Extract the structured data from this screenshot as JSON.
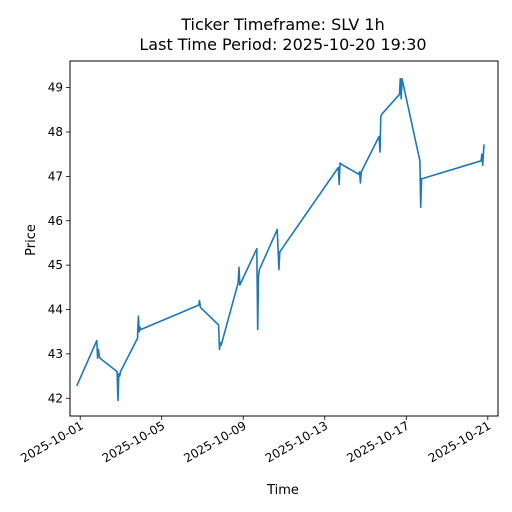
{
  "chart_data": {
    "type": "line",
    "title": "Ticker Timeframe: SLV 1h",
    "subtitle": "Last Time Period: 2025-10-20 19:30",
    "xlabel": "Time",
    "ylabel": "Price",
    "x_axis": "date",
    "xlim": [
      "2025-09-30 12:00",
      "2025-10-21 12:00"
    ],
    "ylim": [
      41.6,
      49.6
    ],
    "x_ticks": [
      "2025-10-01",
      "2025-10-05",
      "2025-10-09",
      "2025-10-13",
      "2025-10-17",
      "2025-10-21"
    ],
    "y_ticks": [
      42,
      43,
      44,
      45,
      46,
      47,
      48,
      49
    ],
    "grid": false,
    "line_color": "#1f77b4",
    "series": [
      {
        "x": [
          "2025-09-30 20:00",
          "2025-10-01 19:30",
          "2025-10-01 20:30",
          "2025-10-01 21:30",
          "2025-10-01 22:30",
          "2025-10-01 23:30",
          "2025-10-02 19:30",
          "2025-10-02 20:30",
          "2025-10-02 21:30",
          "2025-10-02 22:30",
          "2025-10-02 23:30",
          "2025-10-03 19:30",
          "2025-10-03 20:30",
          "2025-10-03 21:30",
          "2025-10-03 22:30",
          "2025-10-03 23:30",
          "2025-10-06 19:30",
          "2025-10-06 20:30",
          "2025-10-06 21:30",
          "2025-10-07 19:00",
          "2025-10-07 20:00",
          "2025-10-07 21:00",
          "2025-10-07 22:00",
          "2025-10-08 18:00",
          "2025-10-08 19:00",
          "2025-10-08 20:00",
          "2025-10-09 16:00",
          "2025-10-09 17:00",
          "2025-10-09 18:00",
          "2025-10-09 19:00",
          "2025-10-10 16:00",
          "2025-10-10 17:00",
          "2025-10-10 18:00",
          "2025-10-10 19:00",
          "2025-10-13 16:00",
          "2025-10-13 17:00",
          "2025-10-13 18:00",
          "2025-10-13 19:00",
          "2025-10-14 16:00",
          "2025-10-14 17:00",
          "2025-10-14 18:00",
          "2025-10-14 19:00",
          "2025-10-15 16:00",
          "2025-10-15 17:00",
          "2025-10-15 18:00",
          "2025-10-15 19:00",
          "2025-10-16 16:00",
          "2025-10-16 17:00",
          "2025-10-16 18:00",
          "2025-10-16 19:00",
          "2025-10-17 16:00",
          "2025-10-17 17:00",
          "2025-10-17 18:00",
          "2025-10-17 19:00",
          "2025-10-20 16:00",
          "2025-10-20 17:00",
          "2025-10-20 18:00",
          "2025-10-20 19:30"
        ],
        "y": [
          42.28,
          43.3,
          42.9,
          43.1,
          42.95,
          42.9,
          42.6,
          41.95,
          42.55,
          42.5,
          42.6,
          43.35,
          43.85,
          43.5,
          43.6,
          43.55,
          44.1,
          44.2,
          44.05,
          43.65,
          43.1,
          43.25,
          43.2,
          44.6,
          44.95,
          44.55,
          45.37,
          43.55,
          44.75,
          44.9,
          45.8,
          45.35,
          44.9,
          45.3,
          47.2,
          46.82,
          47.3,
          47.28,
          47.05,
          47.1,
          46.85,
          47.1,
          47.9,
          47.55,
          48.35,
          48.4,
          48.85,
          49.2,
          48.75,
          49.2,
          47.35,
          46.3,
          46.95,
          46.95,
          47.35,
          47.5,
          47.25,
          47.72
        ]
      }
    ]
  }
}
